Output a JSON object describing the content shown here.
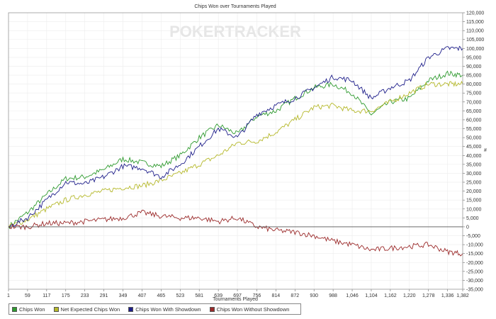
{
  "chart_data": {
    "type": "line",
    "title": "Chips Won over Tournaments Played",
    "xlabel": "Tournaments Played",
    "ylabel": "#",
    "watermark": "POKERTRACKER",
    "xlim": [
      1,
      1382
    ],
    "ylim": [
      -35000,
      120000
    ],
    "grid": true,
    "legend_position": "bottom-left",
    "x_ticks": [
      "1",
      "59",
      "117",
      "175",
      "233",
      "291",
      "349",
      "407",
      "465",
      "523",
      "581",
      "639",
      "697",
      "756",
      "814",
      "872",
      "930",
      "988",
      "1,046",
      "1,104",
      "1,162",
      "1,220",
      "1,278",
      "1,336",
      "1,382"
    ],
    "y_ticks": [
      -35000,
      -30000,
      -25000,
      -20000,
      -15000,
      -10000,
      -5000,
      0,
      5000,
      10000,
      15000,
      20000,
      25000,
      30000,
      35000,
      40000,
      45000,
      50000,
      55000,
      60000,
      65000,
      70000,
      75000,
      80000,
      85000,
      90000,
      95000,
      100000,
      105000,
      110000,
      115000,
      120000
    ],
    "x": [
      1,
      59,
      117,
      175,
      233,
      291,
      349,
      407,
      465,
      523,
      581,
      639,
      697,
      756,
      814,
      872,
      930,
      988,
      1046,
      1104,
      1162,
      1220,
      1278,
      1336,
      1382
    ],
    "series": [
      {
        "name": "Chips Won",
        "color": "#2e9a2e",
        "values": [
          0,
          8000,
          18000,
          27000,
          28000,
          32000,
          38000,
          36000,
          34000,
          40000,
          50000,
          57000,
          52000,
          62000,
          65000,
          72000,
          78000,
          80000,
          75000,
          63000,
          70000,
          72000,
          82000,
          86000,
          85000
        ]
      },
      {
        "name": "Net Expected Chips Won",
        "color": "#b5b82a",
        "values": [
          0,
          4000,
          10000,
          15000,
          18000,
          20000,
          22000,
          23000,
          26000,
          30000,
          35000,
          40000,
          47000,
          48000,
          53000,
          60000,
          67000,
          68000,
          65000,
          65000,
          70000,
          75000,
          80000,
          80000,
          80000
        ]
      },
      {
        "name": "Chips Won With Showdown",
        "color": "#1e1e8a",
        "values": [
          0,
          5000,
          15000,
          25000,
          24000,
          28000,
          34000,
          33000,
          28000,
          35000,
          45000,
          55000,
          50000,
          63000,
          68000,
          72000,
          78000,
          84000,
          82000,
          72000,
          78000,
          82000,
          95000,
          100000,
          100000
        ]
      },
      {
        "name": "Chips Won Without Showdown",
        "color": "#9b2a2a",
        "values": [
          0,
          0,
          2000,
          2000,
          3000,
          4000,
          5000,
          8000,
          6000,
          5000,
          5000,
          3000,
          5000,
          0,
          -2000,
          -3000,
          -5000,
          -8000,
          -10000,
          -13000,
          -12000,
          -11000,
          -10000,
          -14000,
          -15000
        ]
      }
    ]
  }
}
